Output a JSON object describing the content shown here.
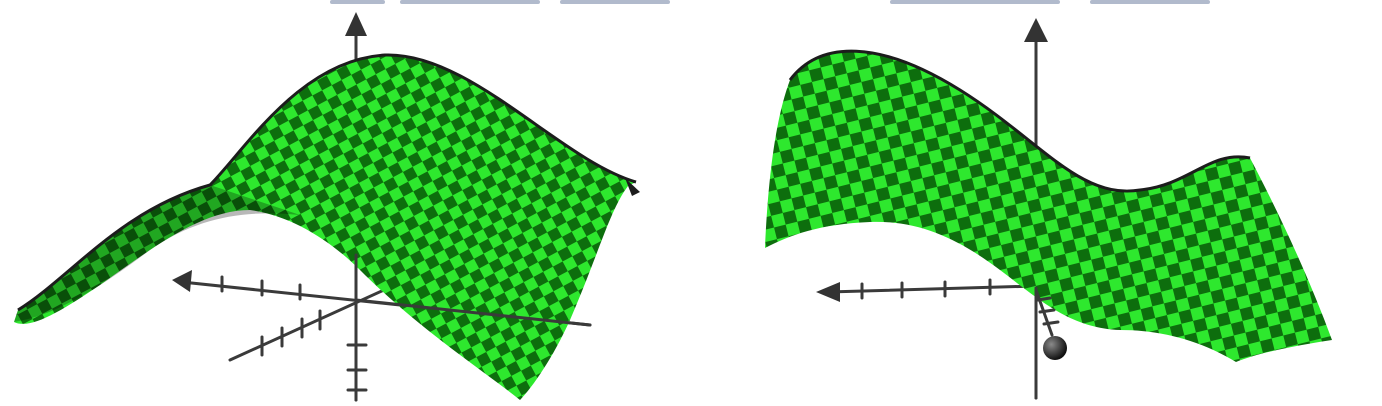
{
  "figure": {
    "colors": {
      "surface_light": "#2ee82e",
      "surface_dark": "#0d6e0d",
      "surface_edge": "#1c1c1c",
      "axis": "#3a3a3a",
      "arrowhead": "#333333",
      "background": "#ffffff",
      "header_text": "#1f3a6e"
    },
    "panels": [
      {
        "surface": "gaussian-hump",
        "axes": "3d-with-ticks"
      },
      {
        "surface": "cubic-wave",
        "axes": "3d-with-ticks",
        "marker": "sphere"
      }
    ]
  }
}
